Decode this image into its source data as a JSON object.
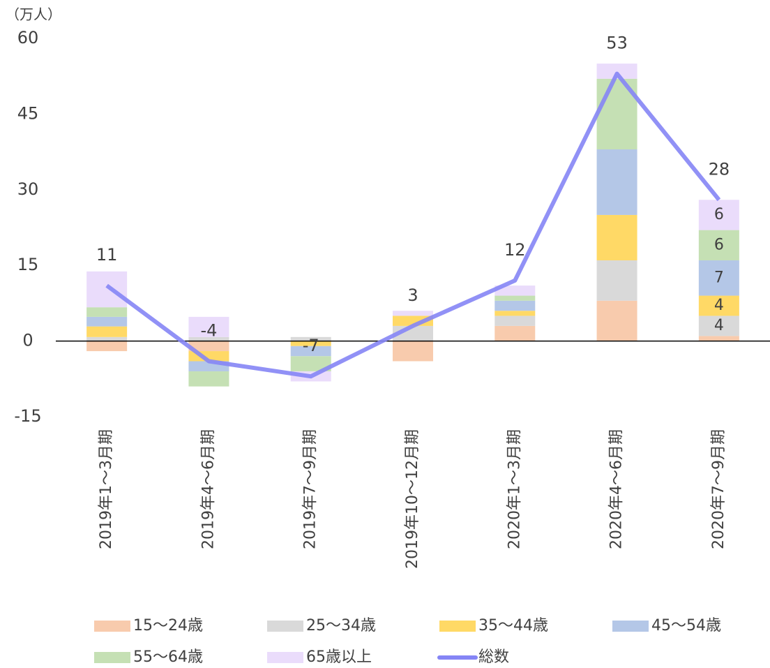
{
  "chart_data": {
    "type": "stacked-bar-line",
    "unit_label": "（万人）",
    "categories": [
      "2019年1～3月期",
      "2019年4～6月期",
      "2019年7～9月期",
      "2019年10～12月期",
      "2020年1～3月期",
      "2020年4～6月期",
      "2020年7～9月期"
    ],
    "series": [
      {
        "name": "15～24歳",
        "type": "bar",
        "color": "#f8cbad",
        "values": [
          -2,
          -2,
          0,
          -4,
          3,
          8,
          1
        ]
      },
      {
        "name": "25～34歳",
        "type": "bar",
        "color": "#d9d9d9",
        "values": [
          0.8,
          0.8,
          0.8,
          3,
          2,
          8,
          4
        ],
        "value_labels": [
          null,
          null,
          null,
          null,
          null,
          null,
          "4"
        ]
      },
      {
        "name": "35～44歳",
        "type": "bar",
        "color": "#ffd966",
        "values": [
          2.1,
          -2,
          -1,
          2,
          1,
          9,
          4
        ],
        "value_labels": [
          null,
          null,
          null,
          null,
          null,
          null,
          "4"
        ]
      },
      {
        "name": "45～54歳",
        "type": "bar",
        "color": "#b4c7e7",
        "values": [
          1.9,
          -2,
          -2,
          0,
          2,
          13,
          7
        ],
        "value_labels": [
          null,
          null,
          null,
          null,
          null,
          null,
          "7"
        ]
      },
      {
        "name": "55～64歳",
        "type": "bar",
        "color": "#c5e0b4",
        "values": [
          1.9,
          -3,
          -3,
          0,
          1,
          14,
          6
        ],
        "value_labels": [
          null,
          null,
          null,
          null,
          null,
          null,
          "6"
        ]
      },
      {
        "name": "65歳以上",
        "type": "bar",
        "color": "#eadcfb",
        "values": [
          7.1,
          4,
          -2,
          1,
          2,
          3,
          6
        ],
        "value_labels": [
          null,
          null,
          null,
          null,
          null,
          null,
          "6"
        ]
      },
      {
        "name": "総数",
        "type": "line",
        "color": "#8585f5",
        "values": [
          11,
          -4,
          -7,
          3,
          12,
          53,
          28
        ]
      }
    ],
    "ylim": [
      -15,
      60
    ],
    "yticks": [
      -15,
      0,
      15,
      30,
      45,
      60
    ]
  }
}
